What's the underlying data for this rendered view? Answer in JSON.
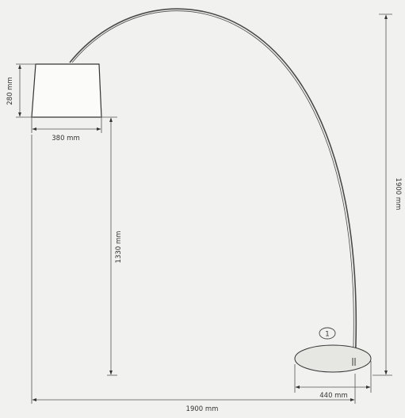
{
  "dimensions": {
    "shade_height": "280 mm",
    "shade_width": "380 mm",
    "shade_bottom_height": "1330 mm",
    "total_height": "1900 mm",
    "base_diameter": "440 mm",
    "total_width": "1900 mm"
  },
  "callout": {
    "number": "1"
  },
  "colors": {
    "background": "#f1f1ef",
    "line": "#3a3a3a",
    "base_fill": "#e6e6e3"
  }
}
